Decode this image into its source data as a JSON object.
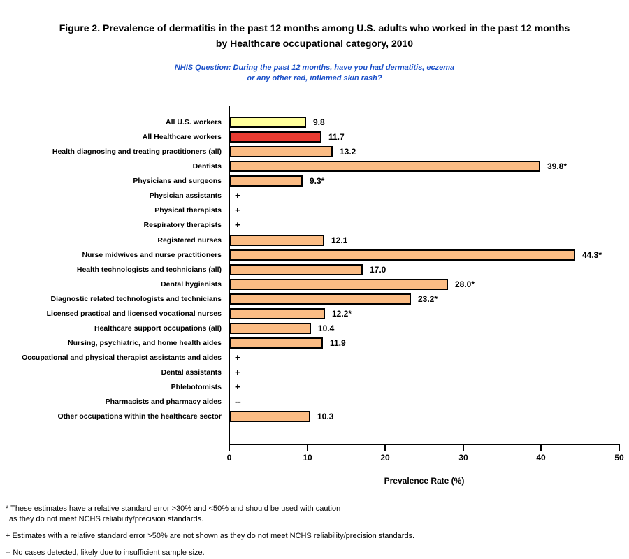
{
  "title": {
    "line1": "Figure 2. Prevalence of dermatitis in the past 12 months among U.S. adults who worked in the past 12 months",
    "line2": "by Healthcare occupational category, 2010"
  },
  "subtitle": {
    "line1": "NHIS Question: During the past 12 months, have you had dermatitis, eczema",
    "line2": "or any other red, inflamed skin rash?"
  },
  "chart_data": {
    "type": "bar",
    "orientation": "horizontal",
    "title": "Figure 2. Prevalence of dermatitis in the past 12 months among U.S. adults who worked in the past 12 months by Healthcare occupational category, 2010",
    "xlabel": "Prevalence Rate (%)",
    "xlim": [
      0,
      50
    ],
    "xticks": [
      0,
      10,
      20,
      30,
      40,
      50
    ],
    "grid": false,
    "legend": false,
    "rows": [
      {
        "category": "All U.S. workers",
        "value": 9.8,
        "label": "9.8",
        "color": "#FFFF9C"
      },
      {
        "category": "All Healthcare workers",
        "value": 11.7,
        "label": "11.7",
        "color": "#E93B32"
      },
      {
        "category": "Health diagnosing and treating practitioners (all)",
        "value": 13.2,
        "label": "13.2",
        "color": "#FBBC84"
      },
      {
        "category": "Dentists",
        "value": 39.8,
        "label": "39.8*",
        "color": "#FBBC84"
      },
      {
        "category": "Physicians and surgeons",
        "value": 9.3,
        "label": "9.3*",
        "color": "#FBBC84"
      },
      {
        "category": "Physician assistants",
        "value": null,
        "label": "+",
        "color": null
      },
      {
        "category": "Physical therapists",
        "value": null,
        "label": "+",
        "color": null
      },
      {
        "category": "Respiratory therapists",
        "value": null,
        "label": "+",
        "color": null
      },
      {
        "category": "Registered nurses",
        "value": 12.1,
        "label": "12.1",
        "color": "#FBBC84"
      },
      {
        "category": "Nurse midwives and nurse practitioners",
        "value": 44.3,
        "label": "44.3*",
        "color": "#FBBC84"
      },
      {
        "category": "Health technologists and technicians (all)",
        "value": 17.0,
        "label": "17.0",
        "color": "#FBBC84"
      },
      {
        "category": "Dental hygienists",
        "value": 28.0,
        "label": "28.0*",
        "color": "#FBBC84"
      },
      {
        "category": "Diagnostic related technologists and technicians",
        "value": 23.2,
        "label": "23.2*",
        "color": "#FBBC84"
      },
      {
        "category": "Licensed practical and licensed vocational nurses",
        "value": 12.2,
        "label": "12.2*",
        "color": "#FBBC84"
      },
      {
        "category": "Healthcare support occupations (all)",
        "value": 10.4,
        "label": "10.4",
        "color": "#FBBC84"
      },
      {
        "category": "Nursing, psychiatric, and home health aides",
        "value": 11.9,
        "label": "11.9",
        "color": "#FBBC84"
      },
      {
        "category": "Occupational and physical therapist assistants and aides",
        "value": null,
        "label": "+",
        "color": null
      },
      {
        "category": "Dental assistants",
        "value": null,
        "label": "+",
        "color": null
      },
      {
        "category": "Phlebotomists",
        "value": null,
        "label": "+",
        "color": null
      },
      {
        "category": "Pharmacists and pharmacy aides",
        "value": null,
        "label": "--",
        "color": null
      },
      {
        "category": "Other occupations within the healthcare sector",
        "value": 10.3,
        "label": "10.3",
        "color": "#FBBC84"
      }
    ]
  },
  "footnotes": {
    "note_star_line1": "* These estimates have a relative standard error >30% and <50% and should be used with caution",
    "note_star_line2": "as they do not meet NCHS reliability/precision standards.",
    "note_plus": "+ Estimates with a relative standard error >50% are not shown as they do not meet NCHS reliability/precision standards.",
    "note_dash": "-- No cases detected, likely due to insufficient sample size."
  },
  "colors": {
    "bar_default": "#FBBC84",
    "bar_all_us_workers": "#FFFF9C",
    "bar_all_healthcare_workers": "#E93B32",
    "bar_border": "#000000",
    "axis": "#000000",
    "subtitle_text": "#1B50C8",
    "background": "#FFFFFF"
  }
}
